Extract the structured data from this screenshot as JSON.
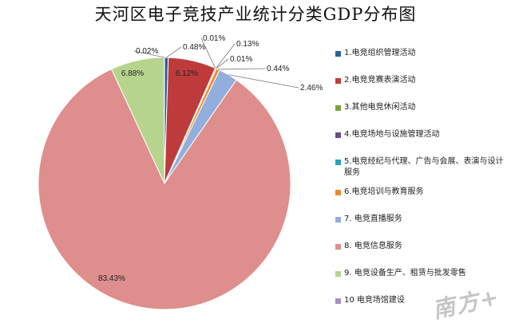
{
  "chart_data": {
    "type": "pie",
    "title": "天河区电子竞技产业统计分类GDP分布图",
    "slices": [
      {
        "label": "1.电竞组织管理活动",
        "value": 0.48,
        "display": "0.48%",
        "color": "#2e5f9e"
      },
      {
        "label": "2.电竞竞赛表演活动",
        "value": 6.12,
        "display": "6.12%",
        "color": "#bf3b3b"
      },
      {
        "label": "3.其他电竞休闲活动",
        "value": 0.01,
        "display": "0.01%",
        "color": "#7ea23b"
      },
      {
        "label": "4.电竞场地与设施管理活动",
        "value": 0.13,
        "display": "0.13%",
        "color": "#6a4a8c"
      },
      {
        "label": "5.电竞经纪与代理、广告与会展、表演与设计服务",
        "value": 0.01,
        "display": "0.01%",
        "color": "#2aa0c0"
      },
      {
        "label": "6.电竞培训与教育服务",
        "value": 0.44,
        "display": "0.44%",
        "color": "#ef8a2a"
      },
      {
        "label": "7. 电竞直播服务",
        "value": 2.46,
        "display": "2.46%",
        "color": "#92aedc"
      },
      {
        "label": "8. 电竞信息服务",
        "value": 83.43,
        "display": "83.43%",
        "color": "#de8e8c"
      },
      {
        "label": "9. 电竞设备生产、租赁与批发零售",
        "value": 6.88,
        "display": "6.88%",
        "color": "#b6d48e"
      },
      {
        "label": "10 电竞场馆建设",
        "value": 0.02,
        "display": "0.02%",
        "color": "#a593c6"
      }
    ],
    "legend": "right"
  },
  "watermark": "南方+"
}
